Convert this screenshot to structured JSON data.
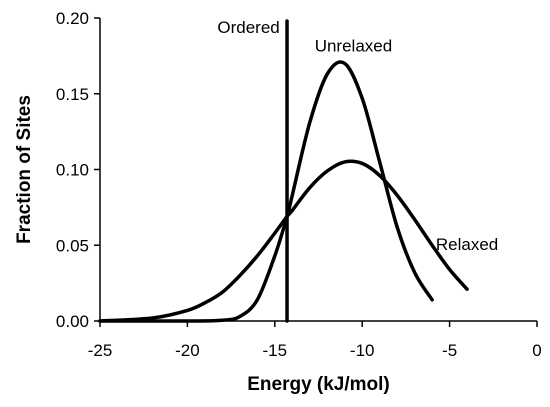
{
  "chart_data": {
    "type": "line",
    "xlabel": "Energy (kJ/mol)",
    "ylabel": "Fraction of Sites",
    "xlim": [
      -25,
      0
    ],
    "ylim": [
      0,
      0.2
    ],
    "xticks": [
      -25,
      -20,
      -15,
      -10,
      -5,
      0
    ],
    "xtick_labels": [
      "-25",
      "-20",
      "-15",
      "-10",
      "-5",
      "0"
    ],
    "yticks": [
      0,
      0.05,
      0.1,
      0.15,
      0.2
    ],
    "ytick_labels": [
      "0.00",
      "0.05",
      "0.10",
      "0.15",
      "0.20"
    ],
    "grid": false,
    "legend": "none (inline labels)",
    "series": [
      {
        "name": "Unrelaxed",
        "color": "#000000",
        "x": [
          -25,
          -20,
          -18,
          -17,
          -16,
          -15,
          -14.3,
          -14,
          -13,
          -12,
          -11,
          -10,
          -9,
          -8,
          -7,
          -6
        ],
        "y": [
          0.0,
          0.0,
          0.0005,
          0.003,
          0.014,
          0.043,
          0.069,
          0.083,
          0.131,
          0.163,
          0.17,
          0.147,
          0.105,
          0.062,
          0.032,
          0.014
        ]
      },
      {
        "name": "Relaxed",
        "color": "#000000",
        "x": [
          -25,
          -22,
          -20,
          -19,
          -18,
          -17,
          -16,
          -15,
          -14.3,
          -14,
          -13,
          -12,
          -11,
          -10,
          -9,
          -8,
          -7,
          -6,
          -5,
          -4
        ],
        "y": [
          0.0,
          0.002,
          0.007,
          0.012,
          0.019,
          0.03,
          0.043,
          0.058,
          0.069,
          0.073,
          0.088,
          0.099,
          0.105,
          0.104,
          0.096,
          0.083,
          0.067,
          0.05,
          0.034,
          0.021
        ]
      },
      {
        "name": "Ordered",
        "color": "#000000",
        "x": [
          -14.3,
          -14.3
        ],
        "y": [
          0,
          0.198
        ]
      }
    ],
    "annotations": [
      {
        "text": "Ordered",
        "x": -16.5,
        "y": 0.19
      },
      {
        "text": "Unrelaxed",
        "x": -10.5,
        "y": 0.178
      },
      {
        "text": "Relaxed",
        "x": -4.0,
        "y": 0.047
      }
    ]
  }
}
